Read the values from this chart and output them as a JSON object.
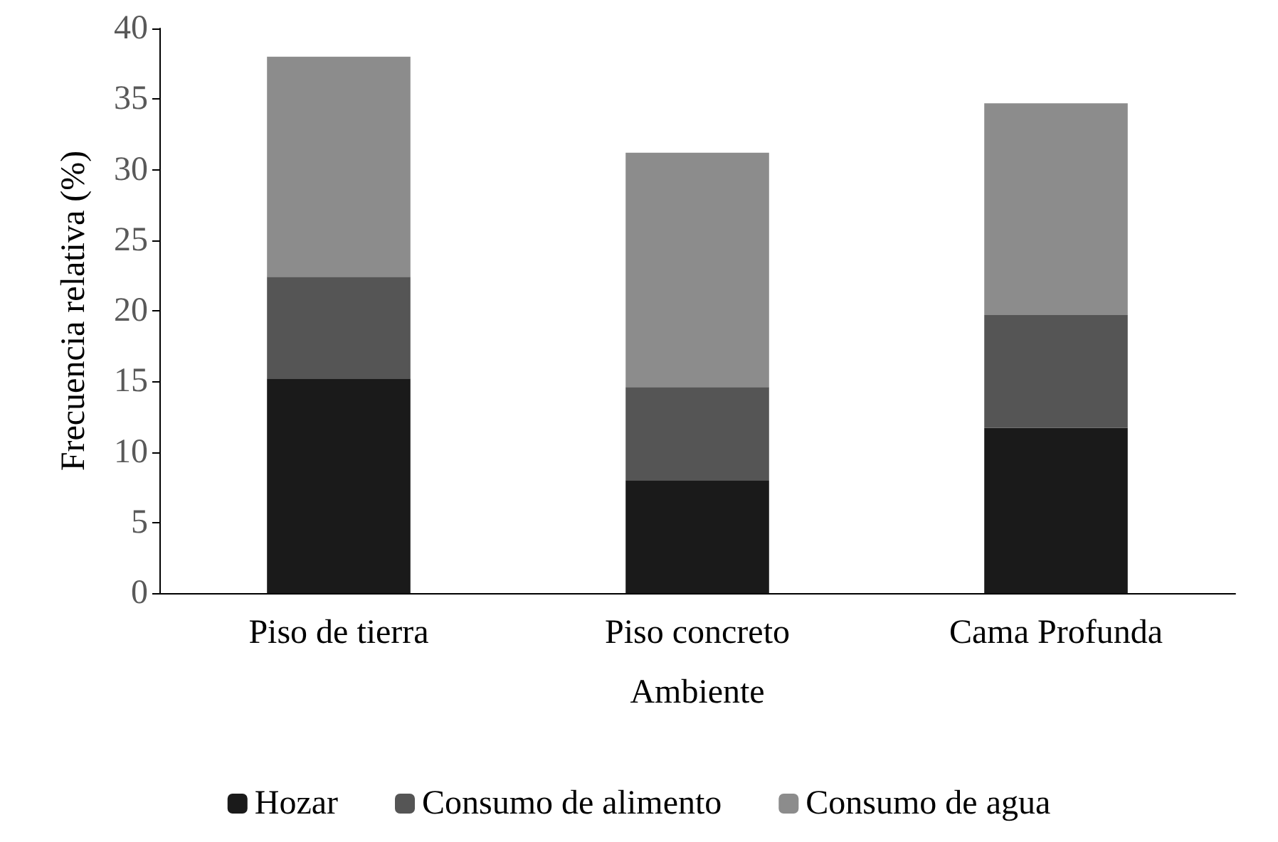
{
  "chart_data": {
    "type": "bar",
    "stacked": true,
    "xlabel": "Ambiente",
    "ylabel": "Frecuencia relativa (%)",
    "categories": [
      "Piso de tierra",
      "Piso concreto",
      "Cama Profunda"
    ],
    "series": [
      {
        "name": "Hozar",
        "color": "#1a1a1a",
        "values": [
          15.2,
          8.0,
          11.7
        ]
      },
      {
        "name": "Consumo de alimento",
        "color": "#555555",
        "values": [
          7.2,
          6.6,
          8.0
        ]
      },
      {
        "name": "Consumo de agua",
        "color": "#8c8c8c",
        "values": [
          15.6,
          16.6,
          15.0
        ]
      }
    ],
    "ylim": [
      0,
      40
    ],
    "yticks": [
      0,
      5,
      10,
      15,
      20,
      25,
      30,
      35,
      40
    ],
    "grid": false,
    "legend": "bottom"
  }
}
